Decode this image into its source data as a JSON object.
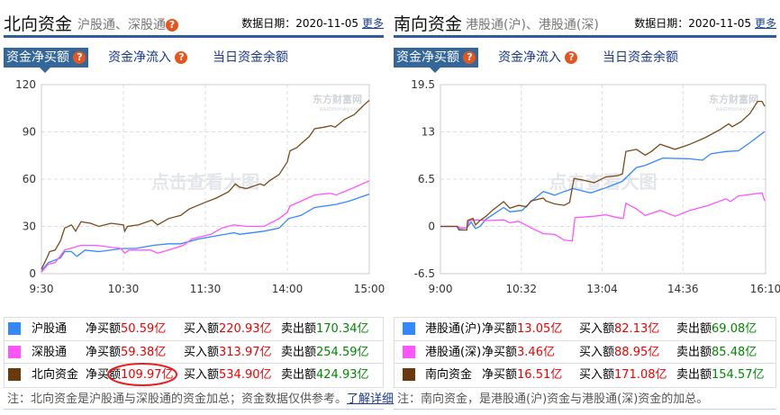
{
  "north": {
    "title": "北向资金",
    "subtitle": "沪股通、深股通",
    "date_label": "数据日期：",
    "date": "2020-11-05",
    "more": "更多",
    "tabs": [
      {
        "label": "资金净买额",
        "active": true,
        "help": true
      },
      {
        "label": "资金净流入",
        "help": true
      },
      {
        "label": "当日资金余额"
      }
    ],
    "watermark": "点击查看大图",
    "logo": "东方财富网 eastmoney.com",
    "rows": [
      {
        "name": "沪股通",
        "color": "#3388ff",
        "net_label": "净买额",
        "net": "50.59亿",
        "buy_label": "买入额",
        "buy": "220.93亿",
        "sell_label": "卖出额",
        "sell": "170.34亿"
      },
      {
        "name": "深股通",
        "color": "#ff55ff",
        "net_label": "净买额",
        "net": "59.38亿",
        "buy_label": "买入额",
        "buy": "313.97亿",
        "sell_label": "卖出额",
        "sell": "254.59亿"
      },
      {
        "name": "北向资金",
        "color": "#6b3a0a",
        "net_label": "净买额",
        "net": "109.97亿",
        "buy_label": "买入额",
        "buy": "534.90亿",
        "sell_label": "卖出额",
        "sell": "424.93亿",
        "highlighted": true
      }
    ],
    "note": "注：北向资金是沪股通与深股通的资金加总；资金数据仅供参考。",
    "note_link": "了解详细"
  },
  "south": {
    "title": "南向资金",
    "subtitle": "港股通(沪)、港股通(深)",
    "date_label": "数据日期：",
    "date": "2020-11-05",
    "more": "更多",
    "tabs": [
      {
        "label": "资金净买额",
        "active": true,
        "help": true
      },
      {
        "label": "资金净流入",
        "help": true
      },
      {
        "label": "当日资金余额"
      }
    ],
    "watermark": "点击查看大图",
    "logo": "东方财富网 eastmoney.com",
    "rows": [
      {
        "name": "港股通(沪)",
        "color": "#3388ff",
        "net_label": "净买额",
        "net": "13.05亿",
        "buy_label": "买入额",
        "buy": "82.13亿",
        "sell_label": "卖出额",
        "sell": "69.08亿"
      },
      {
        "name": "港股通(深)",
        "color": "#ff55ff",
        "net_label": "净买额",
        "net": "3.46亿",
        "buy_label": "买入额",
        "buy": "88.95亿",
        "sell_label": "卖出额",
        "sell": "85.48亿"
      },
      {
        "name": "南向资金",
        "color": "#6b3a0a",
        "net_label": "净买额",
        "net": "16.51亿",
        "buy_label": "买入额",
        "buy": "171.08亿",
        "sell_label": "卖出额",
        "sell": "154.57亿"
      }
    ],
    "note": "注：南向资金，是港股通(沪)资金与港股通(深)资金的加总。"
  },
  "chart_data": [
    {
      "type": "line",
      "ylim": [
        0,
        120
      ],
      "yticks": [
        "0",
        "30",
        "60",
        "90",
        "120"
      ],
      "xticks": [
        "9:30",
        "10:30",
        "11:30",
        "14:00",
        "15:00"
      ],
      "session": [
        "9:30",
        "11:30",
        "13:00",
        "15:00"
      ],
      "grid": true,
      "series": [
        {
          "color": "#3388ff",
          "points": [
            [
              "9:30",
              2
            ],
            [
              "9:35",
              7
            ],
            [
              "9:44",
              10
            ],
            [
              "9:47",
              14
            ],
            [
              "9:52",
              14
            ],
            [
              "9:56",
              11
            ],
            [
              "10:02",
              15
            ],
            [
              "10:12",
              14
            ],
            [
              "10:30",
              16
            ],
            [
              "10:39",
              16
            ],
            [
              "10:52",
              18
            ],
            [
              "11:03",
              19
            ],
            [
              "11:12",
              19
            ],
            [
              "11:25",
              22
            ],
            [
              "13:21",
              26
            ],
            [
              "13:25",
              25
            ],
            [
              "13:43",
              27
            ],
            [
              "13:54",
              29
            ],
            [
              "14:01",
              35
            ],
            [
              "14:10",
              37
            ],
            [
              "14:20",
              42
            ],
            [
              "14:36",
              44
            ],
            [
              "14:45",
              46
            ],
            [
              "15:00",
              50.5
            ]
          ]
        },
        {
          "color": "#ff55ff",
          "points": [
            [
              "9:30",
              1
            ],
            [
              "9:35",
              6
            ],
            [
              "9:40",
              7
            ],
            [
              "9:47",
              15
            ],
            [
              "9:59",
              18
            ],
            [
              "10:10",
              18
            ],
            [
              "10:28",
              16
            ],
            [
              "10:31",
              13
            ],
            [
              "10:34",
              15
            ],
            [
              "10:50",
              15
            ],
            [
              "10:55",
              13
            ],
            [
              "11:03",
              15
            ],
            [
              "11:14",
              18
            ],
            [
              "11:20",
              22
            ],
            [
              "13:04",
              25
            ],
            [
              "13:12",
              29
            ],
            [
              "13:21",
              31
            ],
            [
              "13:30",
              30
            ],
            [
              "13:43",
              30
            ],
            [
              "13:54",
              35
            ],
            [
              "14:00",
              39
            ],
            [
              "14:02",
              43
            ],
            [
              "14:10",
              46
            ],
            [
              "14:20",
              50
            ],
            [
              "14:31",
              51
            ],
            [
              "14:36",
              50
            ],
            [
              "14:47",
              54
            ],
            [
              "15:00",
              59
            ]
          ]
        },
        {
          "color": "#7a4a1a",
          "points": [
            [
              "9:30",
              3
            ],
            [
              "9:34",
              10
            ],
            [
              "9:36",
              14
            ],
            [
              "9:40",
              15
            ],
            [
              "9:44",
              21
            ],
            [
              "9:47",
              29
            ],
            [
              "9:52",
              31
            ],
            [
              "9:55",
              27
            ],
            [
              "9:59",
              33
            ],
            [
              "10:06",
              32
            ],
            [
              "10:12",
              30
            ],
            [
              "10:21",
              32
            ],
            [
              "10:30",
              31
            ],
            [
              "10:31",
              27
            ],
            [
              "10:33",
              30
            ],
            [
              "10:41",
              31
            ],
            [
              "10:51",
              34
            ],
            [
              "10:55",
              31
            ],
            [
              "11:03",
              35
            ],
            [
              "11:12",
              37
            ],
            [
              "11:18",
              41
            ],
            [
              "11:29",
              45
            ],
            [
              "13:08",
              48
            ],
            [
              "13:17",
              52
            ],
            [
              "13:22",
              57
            ],
            [
              "13:25",
              55
            ],
            [
              "13:30",
              54
            ],
            [
              "13:40",
              57
            ],
            [
              "13:43",
              56
            ],
            [
              "13:47",
              59
            ],
            [
              "13:54",
              63
            ],
            [
              "14:00",
              71
            ],
            [
              "14:02",
              78
            ],
            [
              "14:07",
              80
            ],
            [
              "14:12",
              84
            ],
            [
              "14:16",
              87
            ],
            [
              "14:20",
              92
            ],
            [
              "14:27",
              93
            ],
            [
              "14:32",
              94
            ],
            [
              "14:35",
              93
            ],
            [
              "14:42",
              98
            ],
            [
              "14:49",
              101
            ],
            [
              "14:56",
              107
            ],
            [
              "15:00",
              110
            ]
          ]
        }
      ]
    },
    {
      "type": "line",
      "ylim": [
        -6.5,
        19.5
      ],
      "yticks": [
        "-6.5",
        "0",
        "6.5",
        "13",
        "19.5"
      ],
      "xticks": [
        "9:00",
        "10:32",
        "13:04",
        "14:36",
        "16:10"
      ],
      "session": [
        "9:00",
        "12:00",
        "13:00",
        "16:10"
      ],
      "grid": true,
      "series": [
        {
          "color": "#3388ff",
          "points": [
            [
              "9:00",
              0
            ],
            [
              "9:20",
              0
            ],
            [
              "9:22",
              -0.3
            ],
            [
              "9:30",
              -0.2
            ],
            [
              "9:35",
              0.6
            ],
            [
              "9:40",
              -0.3
            ],
            [
              "9:45",
              0
            ],
            [
              "9:52",
              1
            ],
            [
              "10:12",
              2.6
            ],
            [
              "10:19",
              2
            ],
            [
              "10:33",
              2.2
            ],
            [
              "10:43",
              3.4
            ],
            [
              "10:57",
              4.8
            ],
            [
              "11:10",
              4.3
            ],
            [
              "11:21",
              4.8
            ],
            [
              "11:31",
              5.2
            ],
            [
              "11:51",
              4.6
            ],
            [
              "13:08",
              5.3
            ],
            [
              "13:27",
              6.2
            ],
            [
              "13:43",
              8.1
            ],
            [
              "13:53",
              8.4
            ],
            [
              "14:13",
              9.4
            ],
            [
              "14:44",
              9.3
            ],
            [
              "14:58",
              9.1
            ],
            [
              "15:08",
              10.0
            ],
            [
              "15:25",
              10.3
            ],
            [
              "15:39",
              10.4
            ],
            [
              "15:52",
              11.5
            ],
            [
              "16:09",
              13.05
            ]
          ]
        },
        {
          "color": "#ff55ff",
          "points": [
            [
              "9:00",
              0
            ],
            [
              "9:20",
              0
            ],
            [
              "9:22",
              -0.2
            ],
            [
              "9:30",
              -0.2
            ],
            [
              "9:33",
              0.8
            ],
            [
              "9:42",
              0.9
            ],
            [
              "9:55",
              0.8
            ],
            [
              "10:12",
              0.9
            ],
            [
              "10:19",
              0.5
            ],
            [
              "10:29",
              0.7
            ],
            [
              "10:43",
              -0.2
            ],
            [
              "10:57",
              -1
            ],
            [
              "11:10",
              -1.1
            ],
            [
              "11:21",
              -1.9
            ],
            [
              "11:30",
              -2.0
            ],
            [
              "11:33",
              1.2
            ],
            [
              "11:55",
              1.4
            ],
            [
              "13:08",
              1.6
            ],
            [
              "13:22",
              1.2
            ],
            [
              "13:28",
              1.1
            ],
            [
              "13:31",
              3.2
            ],
            [
              "13:43",
              2.4
            ],
            [
              "13:53",
              1.5
            ],
            [
              "14:10",
              2.2
            ],
            [
              "14:27",
              1.4
            ],
            [
              "14:44",
              2.2
            ],
            [
              "15:05",
              2.9
            ],
            [
              "15:25",
              3.8
            ],
            [
              "15:30",
              3.4
            ],
            [
              "15:39",
              4.2
            ],
            [
              "16:06",
              4.6
            ],
            [
              "16:09",
              3.5
            ]
          ]
        },
        {
          "color": "#7a4a1a",
          "points": [
            [
              "9:00",
              0
            ],
            [
              "9:19",
              0
            ],
            [
              "9:21",
              -0.5
            ],
            [
              "9:30",
              -0.5
            ],
            [
              "9:31",
              0.8
            ],
            [
              "9:37",
              1.1
            ],
            [
              "9:40",
              0.2
            ],
            [
              "9:45",
              0.8
            ],
            [
              "9:52",
              1.4
            ],
            [
              "9:59",
              2.2
            ],
            [
              "10:12",
              3.4
            ],
            [
              "10:19",
              2.5
            ],
            [
              "10:29",
              2.9
            ],
            [
              "10:38",
              2.7
            ],
            [
              "10:43",
              3.5
            ],
            [
              "10:57",
              3.9
            ],
            [
              "11:00",
              3.5
            ],
            [
              "11:10",
              3.1
            ],
            [
              "11:21",
              2.9
            ],
            [
              "11:27",
              3.3
            ],
            [
              "11:32",
              6.6
            ],
            [
              "11:41",
              6.4
            ],
            [
              "11:55",
              6.0
            ],
            [
              "13:08",
              6.8
            ],
            [
              "13:22",
              7.0
            ],
            [
              "13:27",
              7.2
            ],
            [
              "13:31",
              10.3
            ],
            [
              "13:43",
              10.6
            ],
            [
              "13:53",
              9.8
            ],
            [
              "14:00",
              10.3
            ],
            [
              "14:10",
              11.3
            ],
            [
              "14:27",
              10.6
            ],
            [
              "14:44",
              11.3
            ],
            [
              "15:01",
              12.2
            ],
            [
              "15:18",
              13.3
            ],
            [
              "15:28",
              14.1
            ],
            [
              "15:32",
              13.7
            ],
            [
              "15:42",
              14.4
            ],
            [
              "15:52",
              15.5
            ],
            [
              "16:01",
              17.2
            ],
            [
              "16:06",
              17.2
            ],
            [
              "16:09",
              16.5
            ]
          ]
        }
      ]
    }
  ]
}
